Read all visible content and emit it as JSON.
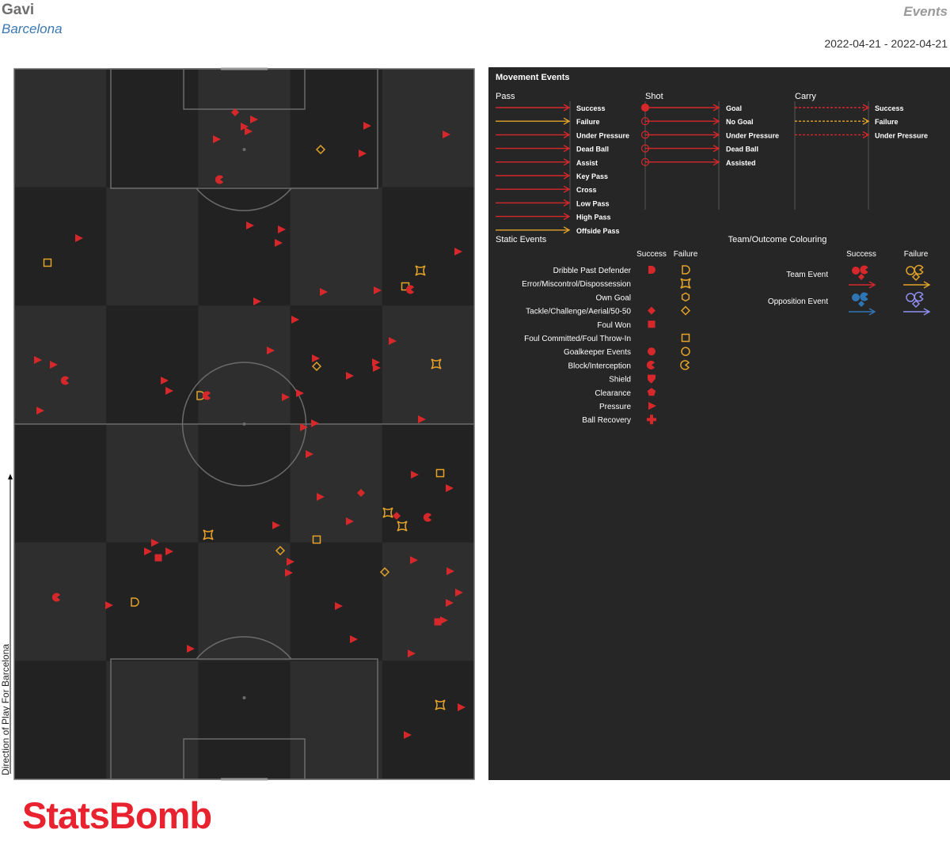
{
  "header": {
    "player": "Gavi",
    "team": "Barcelona",
    "title": "Events",
    "date_range": "2022-04-21 - 2022-04-21"
  },
  "pitch": {
    "direction_label": "Direction of Play For Barcelona",
    "colors": {
      "background": "#262626",
      "stripe_light": "#2e2e2e",
      "stripe_dark": "#222222",
      "lines": "#6b6b6b",
      "success": "#d6272b",
      "failure": "#e3a329"
    },
    "events": [
      {
        "type": "tackle",
        "outcome": "success"
      },
      {
        "type": "pressure",
        "outcome": "success"
      },
      {
        "type": "pressure",
        "outcome": "success"
      },
      {
        "type": "pressure",
        "outcome": "success"
      },
      {
        "type": "pressure",
        "outcome": "success"
      },
      {
        "type": "pressure",
        "outcome": "success"
      },
      {
        "type": "pressure",
        "outcome": "success"
      },
      {
        "type": "tackle",
        "outcome": "failure"
      },
      {
        "type": "pressure",
        "outcome": "success"
      },
      {
        "type": "block",
        "outcome": "success"
      },
      {
        "type": "pressure",
        "outcome": "success"
      },
      {
        "type": "pressure",
        "outcome": "success"
      },
      {
        "type": "pressure",
        "outcome": "success"
      },
      {
        "type": "pressure",
        "outcome": "success"
      },
      {
        "type": "pressure",
        "outcome": "success"
      },
      {
        "type": "foul_committed",
        "outcome": "failure"
      },
      {
        "type": "error",
        "outcome": "failure"
      },
      {
        "type": "foul_committed",
        "outcome": "failure"
      },
      {
        "type": "block",
        "outcome": "success"
      },
      {
        "type": "pressure",
        "outcome": "success"
      },
      {
        "type": "pressure",
        "outcome": "success"
      },
      {
        "type": "pressure",
        "outcome": "success"
      },
      {
        "type": "pressure",
        "outcome": "success"
      },
      {
        "type": "pressure",
        "outcome": "success"
      },
      {
        "type": "pressure",
        "outcome": "success"
      },
      {
        "type": "pressure",
        "outcome": "success"
      },
      {
        "type": "pressure",
        "outcome": "success"
      },
      {
        "type": "tackle",
        "outcome": "failure"
      },
      {
        "type": "pressure",
        "outcome": "success"
      },
      {
        "type": "pressure",
        "outcome": "success"
      },
      {
        "type": "pressure",
        "outcome": "success"
      },
      {
        "type": "pressure",
        "outcome": "success"
      },
      {
        "type": "error",
        "outcome": "failure"
      },
      {
        "type": "block",
        "outcome": "success"
      },
      {
        "type": "pressure",
        "outcome": "success"
      },
      {
        "type": "pressure",
        "outcome": "success"
      },
      {
        "type": "pressure",
        "outcome": "success"
      },
      {
        "type": "dribble",
        "outcome": "failure"
      },
      {
        "type": "block",
        "outcome": "success"
      },
      {
        "type": "pressure",
        "outcome": "success"
      },
      {
        "type": "pressure",
        "outcome": "success"
      },
      {
        "type": "pressure",
        "outcome": "success"
      },
      {
        "type": "pressure",
        "outcome": "success"
      },
      {
        "type": "pressure",
        "outcome": "success"
      },
      {
        "type": "pressure",
        "outcome": "success"
      },
      {
        "type": "foul_committed",
        "outcome": "failure"
      },
      {
        "type": "pressure",
        "outcome": "success"
      },
      {
        "type": "pressure",
        "outcome": "success"
      },
      {
        "type": "tackle",
        "outcome": "success"
      },
      {
        "type": "pressure",
        "outcome": "success"
      },
      {
        "type": "pressure",
        "outcome": "success"
      },
      {
        "type": "error",
        "outcome": "failure"
      },
      {
        "type": "tackle",
        "outcome": "success"
      },
      {
        "type": "error",
        "outcome": "failure"
      },
      {
        "type": "block",
        "outcome": "success"
      },
      {
        "type": "error",
        "outcome": "failure"
      },
      {
        "type": "foul_committed",
        "outcome": "failure"
      },
      {
        "type": "pressure",
        "outcome": "success"
      },
      {
        "type": "pressure",
        "outcome": "success"
      },
      {
        "type": "foul_won",
        "outcome": "success"
      },
      {
        "type": "pressure",
        "outcome": "success"
      },
      {
        "type": "tackle",
        "outcome": "failure"
      },
      {
        "type": "pressure",
        "outcome": "success"
      },
      {
        "type": "pressure",
        "outcome": "success"
      },
      {
        "type": "tackle",
        "outcome": "failure"
      },
      {
        "type": "pressure",
        "outcome": "success"
      },
      {
        "type": "pressure",
        "outcome": "success"
      },
      {
        "type": "pressure",
        "outcome": "success"
      },
      {
        "type": "block",
        "outcome": "success"
      },
      {
        "type": "pressure",
        "outcome": "success"
      },
      {
        "type": "dribble",
        "outcome": "failure"
      },
      {
        "type": "pressure",
        "outcome": "success"
      },
      {
        "type": "pressure",
        "outcome": "success"
      },
      {
        "type": "foul_won",
        "outcome": "success"
      },
      {
        "type": "pressure",
        "outcome": "success"
      },
      {
        "type": "pressure",
        "outcome": "success"
      },
      {
        "type": "pressure",
        "outcome": "success"
      },
      {
        "type": "pressure",
        "outcome": "success"
      },
      {
        "type": "pressure",
        "outcome": "success"
      },
      {
        "type": "error",
        "outcome": "failure"
      },
      {
        "type": "pressure",
        "outcome": "success"
      },
      {
        "type": "pressure",
        "outcome": "success"
      }
    ]
  },
  "legend": {
    "movement_title": "Movement Events",
    "pass_title": "Pass",
    "shot_title": "Shot",
    "carry_title": "Carry",
    "pass_items": [
      "Success",
      "Failure",
      "Under Pressure",
      "Dead Ball",
      "Assist",
      "Key Pass",
      "Cross",
      "Low Pass",
      "High Pass",
      "Offside Pass"
    ],
    "shot_items": [
      "Goal",
      "No Goal",
      "Under Pressure",
      "Dead Ball",
      "Assisted"
    ],
    "carry_items": [
      "Success",
      "Failure",
      "Under Pressure"
    ],
    "static_title": "Static Events",
    "success_header": "Success",
    "failure_header": "Failure",
    "static_items": [
      "Dribble Past Defender",
      "Error/Miscontrol/Dispossession",
      "Own Goal",
      "Tackle/Challenge/Aerial/50-50",
      "Foul Won",
      "Foul Committed/Foul Throw-In",
      "Goalkeeper Events",
      "Block/Interception",
      "Shield",
      "Clearance",
      "Pressure",
      "Ball Recovery"
    ],
    "team_title": "Team/Outcome Colouring",
    "team_event": "Team Event",
    "opposition_event": "Opposition Event",
    "colors": {
      "panel": "#262626",
      "text": "#ffffff",
      "success": "#d6272b",
      "failure": "#e3a329",
      "opp_success": "#2e75b6",
      "opp_failure": "#8f8ff0",
      "divider": "#555555"
    }
  },
  "footer": {
    "logo": "StatsBomb"
  }
}
